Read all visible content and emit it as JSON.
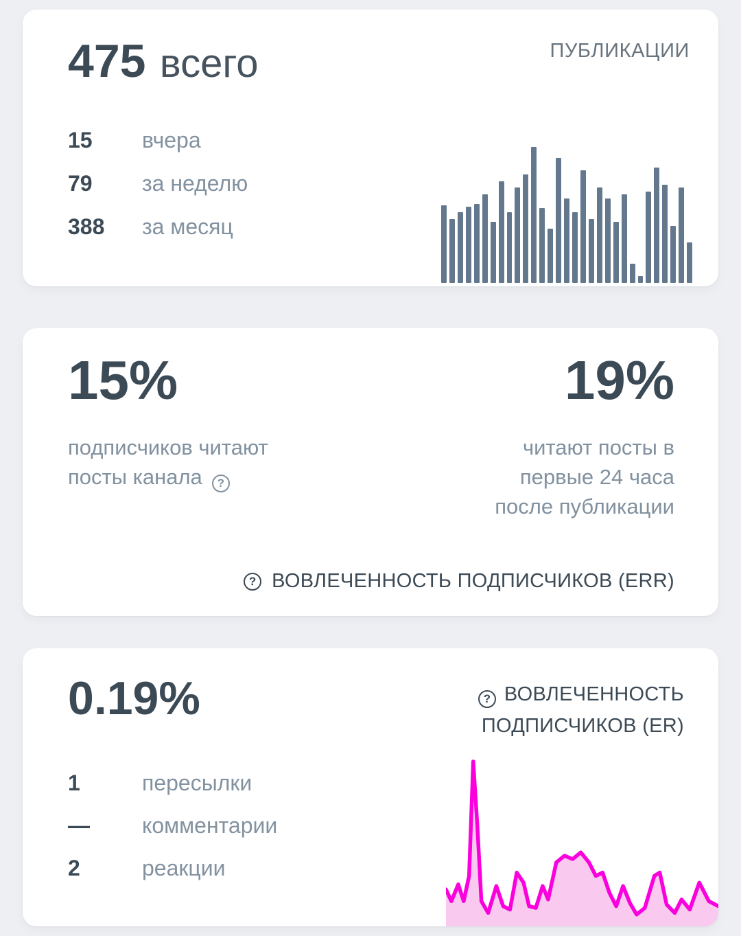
{
  "publications_card": {
    "header": "ПУБЛИКАЦИИ",
    "total_value": "475",
    "total_label": "всего",
    "stats": [
      {
        "value": "15",
        "label": "вчера"
      },
      {
        "value": "79",
        "label": "за неделю"
      },
      {
        "value": "388",
        "label": "за месяц"
      }
    ]
  },
  "err_card": {
    "left_value": "15%",
    "left_label": "подписчиков читают посты канала",
    "right_value": "19%",
    "right_label": "читают посты в первые 24 часа после публикации",
    "footer_label": "ВОВЛЕЧЕННОСТЬ ПОДПИСЧИКОВ (ERR)",
    "help_icon": "?"
  },
  "er_card": {
    "value": "0.19%",
    "header_label": "ВОВЛЕЧЕННОСТЬ ПОДПИСЧИКОВ (ER)",
    "help_icon": "?",
    "stats": [
      {
        "value": "1",
        "label": "пересылки"
      },
      {
        "value": "—",
        "label": "комментарии"
      },
      {
        "value": "2",
        "label": "реакции"
      }
    ]
  },
  "chart_data": [
    {
      "type": "bar",
      "title": "",
      "ylabel": "",
      "xlabel": "",
      "ylim": [
        0,
        100
      ],
      "grid": "off",
      "legend": "off",
      "color": "#63788c",
      "values": [
        57,
        47,
        52,
        56,
        58,
        65,
        45,
        75,
        52,
        70,
        80,
        100,
        55,
        40,
        92,
        62,
        52,
        83,
        47,
        70,
        62,
        45,
        65,
        14,
        5,
        67,
        85,
        72,
        42,
        70,
        30
      ]
    },
    {
      "type": "area",
      "title": "",
      "ylabel": "",
      "xlabel": "",
      "ylim": [
        0,
        100
      ],
      "grid": "off",
      "legend": "off",
      "line_color": "#f900dd",
      "fill_color": "#f9c9ef",
      "points": [
        [
          0.0,
          22
        ],
        [
          0.02,
          15
        ],
        [
          0.045,
          25
        ],
        [
          0.065,
          15
        ],
        [
          0.085,
          30
        ],
        [
          0.1,
          98
        ],
        [
          0.115,
          60
        ],
        [
          0.13,
          15
        ],
        [
          0.155,
          8
        ],
        [
          0.185,
          24
        ],
        [
          0.21,
          12
        ],
        [
          0.235,
          10
        ],
        [
          0.26,
          32
        ],
        [
          0.285,
          26
        ],
        [
          0.305,
          12
        ],
        [
          0.33,
          11
        ],
        [
          0.355,
          24
        ],
        [
          0.375,
          16
        ],
        [
          0.405,
          38
        ],
        [
          0.435,
          42
        ],
        [
          0.465,
          40
        ],
        [
          0.495,
          44
        ],
        [
          0.525,
          38
        ],
        [
          0.55,
          30
        ],
        [
          0.575,
          32
        ],
        [
          0.6,
          20
        ],
        [
          0.625,
          12
        ],
        [
          0.65,
          24
        ],
        [
          0.675,
          14
        ],
        [
          0.7,
          7
        ],
        [
          0.73,
          11
        ],
        [
          0.765,
          30
        ],
        [
          0.785,
          32
        ],
        [
          0.81,
          13
        ],
        [
          0.84,
          8
        ],
        [
          0.865,
          16
        ],
        [
          0.895,
          10
        ],
        [
          0.93,
          26
        ],
        [
          0.965,
          15
        ],
        [
          1.0,
          12
        ]
      ]
    }
  ]
}
